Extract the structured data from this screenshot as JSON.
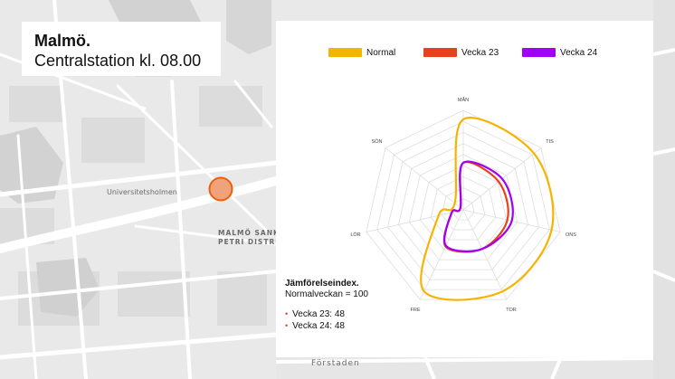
{
  "header": {
    "title": "Malmö.",
    "subtitle": "Centralstation kl. 08.00"
  },
  "map": {
    "labels": {
      "universitetsholmen": "Universitetsholmen",
      "district_line1": "MALMÖ SANKT",
      "district_line2": "PETRI DISTRIKT",
      "forstaden": "Förstaden"
    },
    "marker_color": "#f0a27a"
  },
  "legend": [
    {
      "name": "Normal",
      "color": "#f6b400"
    },
    {
      "name": "Vecka 23",
      "color": "#e8411c"
    },
    {
      "name": "Vecka 24",
      "color": "#a100f2"
    }
  ],
  "chart_data": {
    "type": "radar",
    "categories": [
      "MÅN",
      "TIS",
      "ONS",
      "TOR",
      "FRE",
      "LÖR",
      "SÖN"
    ],
    "series": [
      {
        "name": "Normal",
        "color": "#f6b400",
        "values": [
          100,
          100,
          100,
          100,
          100,
          28,
          12
        ]
      },
      {
        "name": "Vecka 23",
        "color": "#e8411c",
        "values": [
          52,
          50,
          50,
          48,
          45,
          13,
          4
        ]
      },
      {
        "name": "Vecka 24",
        "color": "#a100f2",
        "values": [
          52,
          55,
          55,
          48,
          44,
          13,
          4
        ]
      }
    ],
    "rmax": 110,
    "rings": 9,
    "grid": true
  },
  "comparison": {
    "title": "Jämförelseindex.",
    "subtitle": "Normalveckan = 100",
    "items": [
      "Vecka 23: 48",
      "Vecka 24: 48"
    ]
  }
}
